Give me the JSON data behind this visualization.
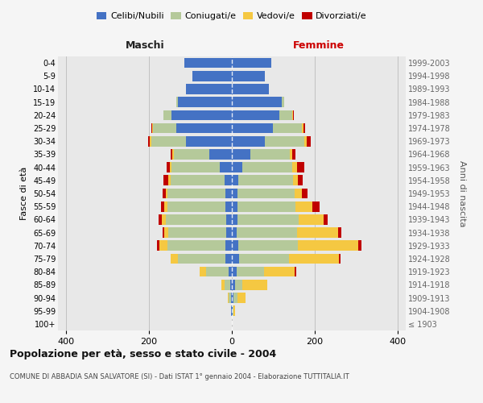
{
  "age_groups": [
    "100+",
    "95-99",
    "90-94",
    "85-89",
    "80-84",
    "75-79",
    "70-74",
    "65-69",
    "60-64",
    "55-59",
    "50-54",
    "45-49",
    "40-44",
    "35-39",
    "30-34",
    "25-29",
    "20-24",
    "15-19",
    "10-14",
    "5-9",
    "0-4"
  ],
  "birth_years": [
    "≤ 1903",
    "1904-1908",
    "1909-1913",
    "1914-1918",
    "1919-1923",
    "1924-1928",
    "1929-1933",
    "1934-1938",
    "1939-1943",
    "1944-1948",
    "1949-1953",
    "1954-1958",
    "1959-1963",
    "1964-1968",
    "1969-1973",
    "1974-1978",
    "1979-1983",
    "1984-1988",
    "1989-1993",
    "1994-1998",
    "1999-2003"
  ],
  "maschi": {
    "celibi": [
      0,
      1,
      2,
      4,
      8,
      15,
      15,
      13,
      14,
      15,
      15,
      18,
      30,
      55,
      110,
      135,
      145,
      130,
      110,
      95,
      115
    ],
    "coniugati": [
      0,
      1,
      5,
      14,
      55,
      115,
      140,
      140,
      145,
      140,
      140,
      130,
      115,
      85,
      85,
      55,
      20,
      5,
      0,
      0,
      0
    ],
    "vedovi": [
      0,
      0,
      2,
      8,
      15,
      18,
      20,
      10,
      10,
      8,
      5,
      5,
      5,
      3,
      3,
      2,
      1,
      0,
      0,
      0,
      0
    ],
    "divorziati": [
      0,
      0,
      0,
      0,
      0,
      0,
      5,
      5,
      8,
      8,
      8,
      12,
      8,
      5,
      5,
      2,
      0,
      0,
      0,
      0,
      0
    ]
  },
  "femmine": {
    "nubili": [
      0,
      2,
      4,
      8,
      12,
      18,
      15,
      12,
      13,
      14,
      14,
      15,
      25,
      45,
      80,
      100,
      115,
      120,
      90,
      80,
      95
    ],
    "coniugate": [
      0,
      2,
      10,
      18,
      65,
      120,
      145,
      145,
      148,
      140,
      138,
      132,
      120,
      95,
      95,
      70,
      30,
      6,
      0,
      0,
      0
    ],
    "vedove": [
      0,
      4,
      20,
      60,
      75,
      120,
      145,
      100,
      60,
      40,
      18,
      12,
      12,
      5,
      5,
      3,
      2,
      1,
      0,
      0,
      0
    ],
    "divorziate": [
      0,
      0,
      0,
      0,
      3,
      5,
      8,
      8,
      10,
      18,
      12,
      12,
      18,
      8,
      10,
      3,
      2,
      0,
      0,
      0,
      0
    ]
  },
  "color_celibi": "#4472c4",
  "color_coniugati": "#b5c99a",
  "color_vedovi": "#f5c842",
  "color_divorziati": "#c00000",
  "xlim": 420,
  "title": "Popolazione per età, sesso e stato civile - 2004",
  "subtitle": "COMUNE DI ABBADIA SAN SALVATORE (SI) - Dati ISTAT 1° gennaio 2004 - Elaborazione TUTTITALIA.IT",
  "ylabel_left": "Fasce di età",
  "ylabel_right": "Anni di nascita",
  "xlabel_maschi": "Maschi",
  "xlabel_femmine": "Femmine",
  "bg_color": "#f5f5f5",
  "plot_bg_color": "#e8e8e8"
}
